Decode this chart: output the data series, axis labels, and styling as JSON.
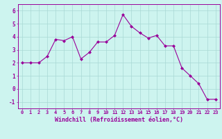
{
  "x": [
    0,
    1,
    2,
    3,
    4,
    5,
    6,
    7,
    8,
    9,
    10,
    11,
    12,
    13,
    14,
    15,
    16,
    17,
    18,
    19,
    20,
    21,
    22,
    23
  ],
  "y": [
    2.0,
    2.0,
    2.0,
    2.5,
    3.8,
    3.7,
    4.0,
    2.3,
    2.8,
    3.6,
    3.6,
    4.1,
    5.7,
    4.8,
    4.3,
    3.9,
    4.1,
    3.3,
    3.3,
    1.6,
    1.0,
    0.4,
    -0.8,
    -0.8
  ],
  "line_color": "#990099",
  "marker": "D",
  "marker_size": 2.0,
  "line_width": 0.8,
  "bg_color": "#cdf4ef",
  "grid_color": "#a8d8d4",
  "xlabel": "Windchill (Refroidissement éolien,°C)",
  "xlabel_color": "#990099",
  "tick_color": "#990099",
  "xlim": [
    -0.5,
    23.5
  ],
  "ylim": [
    -1.5,
    6.5
  ],
  "yticks": [
    -1,
    0,
    1,
    2,
    3,
    4,
    5,
    6
  ],
  "xticks": [
    0,
    1,
    2,
    3,
    4,
    5,
    6,
    7,
    8,
    9,
    10,
    11,
    12,
    13,
    14,
    15,
    16,
    17,
    18,
    19,
    20,
    21,
    22,
    23
  ],
  "xtick_labels": [
    "0",
    "1",
    "2",
    "3",
    "4",
    "5",
    "6",
    "7",
    "8",
    "9",
    "10",
    "11",
    "12",
    "13",
    "14",
    "15",
    "16",
    "17",
    "18",
    "19",
    "20",
    "21",
    "22",
    "23"
  ],
  "tick_fontsize": 5.0,
  "xlabel_fontsize": 6.0,
  "ytick_fontsize": 5.5
}
